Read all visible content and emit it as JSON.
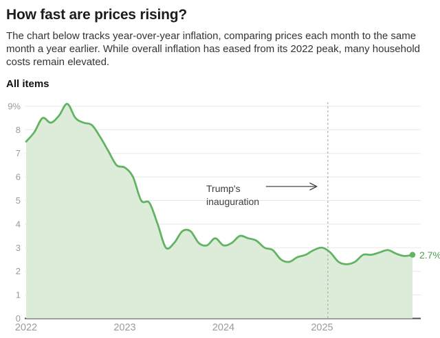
{
  "header": {
    "title": "How fast are prices rising?",
    "description": "The chart below tracks year-over-year inflation, comparing prices each month to the same month a year earlier. While overall inflation has eased from its 2022 peak, many household costs remain elevated."
  },
  "chart_data": {
    "type": "area",
    "title": "All items",
    "ylabel": "",
    "xlabel": "",
    "ylim": [
      0,
      9.4
    ],
    "grid": "horizontal",
    "legend": "none",
    "series": [
      {
        "name": "All items",
        "start_month": "2022-01",
        "values": [
          7.5,
          7.9,
          8.5,
          8.3,
          8.6,
          9.1,
          8.5,
          8.3,
          8.2,
          7.7,
          7.1,
          6.5,
          6.4,
          6.0,
          5.0,
          4.9,
          4.0,
          3.0,
          3.2,
          3.7,
          3.7,
          3.2,
          3.1,
          3.4,
          3.1,
          3.2,
          3.5,
          3.4,
          3.3,
          3.0,
          2.9,
          2.5,
          2.4,
          2.6,
          2.7,
          2.9,
          3.0,
          2.8,
          2.4,
          2.3,
          2.4,
          2.7,
          2.7,
          2.8,
          2.9,
          2.75,
          2.65,
          2.7
        ]
      }
    ],
    "x_tick_labels": [
      "2022",
      "2023",
      "2024",
      "2025"
    ],
    "x_tick_month_indexes": [
      0,
      12,
      24,
      36
    ],
    "y_ticks": [
      {
        "value": 9,
        "label": "9%"
      },
      {
        "value": 8,
        "label": "8"
      },
      {
        "value": 7,
        "label": "7"
      },
      {
        "value": 6,
        "label": "6"
      },
      {
        "value": 5,
        "label": "5"
      },
      {
        "value": 4,
        "label": "4"
      },
      {
        "value": 3,
        "label": "3"
      },
      {
        "value": 2,
        "label": "2"
      },
      {
        "value": 1,
        "label": "1"
      },
      {
        "value": 0,
        "label": "0"
      }
    ],
    "annotation": {
      "lines": [
        "Trump's",
        "inauguration"
      ],
      "month_index": 36.7,
      "has_arrow": true
    },
    "end_label": "2.7%",
    "last_value": 2.7
  },
  "colors": {
    "line": "#62b364",
    "fill": "#ddecd9",
    "grid": "#e8e8e8",
    "baseline": "#4d4d4d",
    "dashed_rule": "#b3b3b3",
    "axis_text": "#9a9a9a",
    "title_text": "#1c1c1c",
    "body_text": "#333333",
    "annotation_text": "#3d3d3d",
    "arrow": "#444444",
    "end_label_text": "#4da04f"
  }
}
